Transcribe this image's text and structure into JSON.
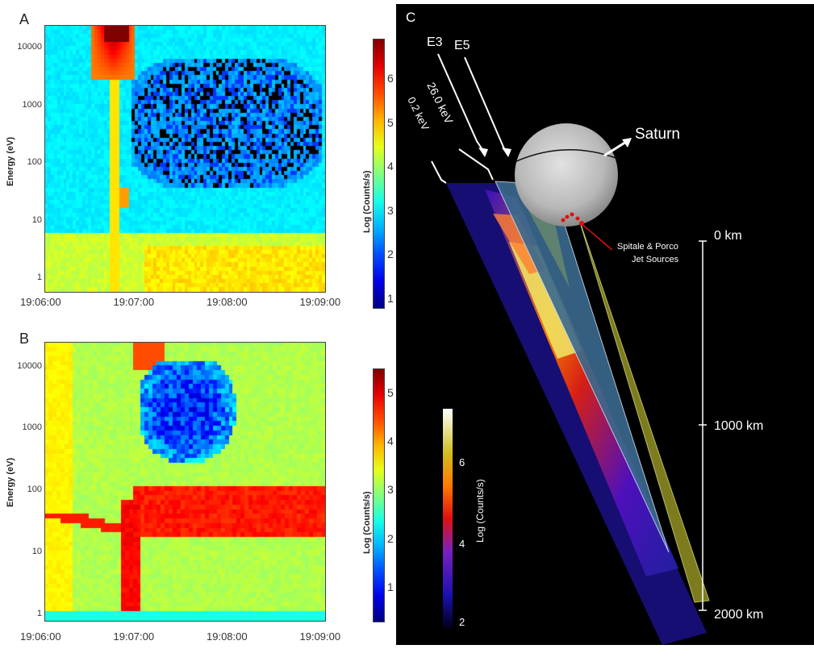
{
  "panels": {
    "a": {
      "letter": "A"
    },
    "b": {
      "letter": "B"
    },
    "c": {
      "letter": "C"
    }
  },
  "chart_data": [
    {
      "type": "heatmap",
      "panel": "A",
      "ylabel": "Energy (eV)",
      "xticks": [
        "19:06:00",
        "19:07:00",
        "19:08:00",
        "19:09:00"
      ],
      "yticks": [
        "1",
        "10",
        "100",
        "1000",
        "10000"
      ],
      "ylim": [
        0.6,
        25000
      ],
      "log_y": true,
      "colorbar": {
        "label": "Log (Counts/s)",
        "ticks": [
          "1",
          "2",
          "3",
          "4",
          "5",
          "6"
        ],
        "range": [
          0.8,
          6.9
        ]
      },
      "colors": {
        "low": "#08008a",
        "mid": "#40d0d0",
        "high": "#7a0000"
      }
    },
    {
      "type": "heatmap",
      "panel": "B",
      "ylabel": "Energy (eV)",
      "xticks": [
        "19:06:00",
        "19:07:00",
        "19:08:00",
        "19:09:00"
      ],
      "yticks": [
        "1",
        "10",
        "100",
        "1000",
        "10000"
      ],
      "ylim": [
        0.8,
        25000
      ],
      "log_y": true,
      "colorbar": {
        "label": "Log (Counts/s)",
        "ticks": [
          "1",
          "2",
          "3",
          "4",
          "5"
        ],
        "range": [
          0.3,
          5.5
        ]
      },
      "colors": {
        "low": "#08008a",
        "mid": "#40d0d0",
        "high": "#7a0000"
      }
    }
  ],
  "panel_c": {
    "letter": "C",
    "labels": {
      "e3": "E3",
      "e5": "E5",
      "energy_high": "26.0 keV",
      "energy_low": "0.2 keV",
      "saturn": "Saturn",
      "jets_line1": "Spitale & Porco",
      "jets_line2": "Jet Sources"
    },
    "scale_ticks": [
      "0 km",
      "1000 km",
      "2000 km"
    ],
    "colorbar": {
      "label": "Log (Counts/s)",
      "ticks": [
        "2",
        "4",
        "6"
      ]
    },
    "colors": {
      "background": "#000000",
      "e3_beam": "#3a6a8e",
      "e5_beam": "#8a8a22"
    }
  }
}
